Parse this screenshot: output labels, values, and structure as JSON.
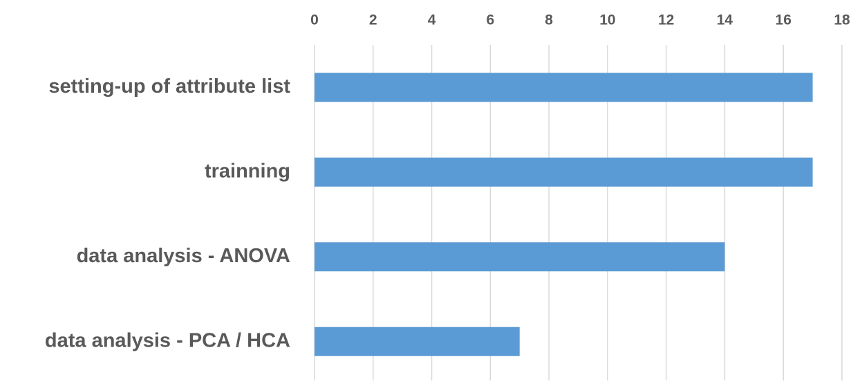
{
  "chart_data": {
    "type": "bar",
    "orientation": "horizontal",
    "categories": [
      "setting-up of attribute list",
      "trainning",
      "data analysis - ANOVA",
      "data analysis - PCA / HCA"
    ],
    "values": [
      17,
      17,
      14,
      7
    ],
    "color": "#5b9bd5",
    "xlim": [
      0,
      18
    ],
    "xticks": [
      0,
      2,
      4,
      6,
      8,
      10,
      12,
      14,
      16,
      18
    ],
    "grid": true
  }
}
